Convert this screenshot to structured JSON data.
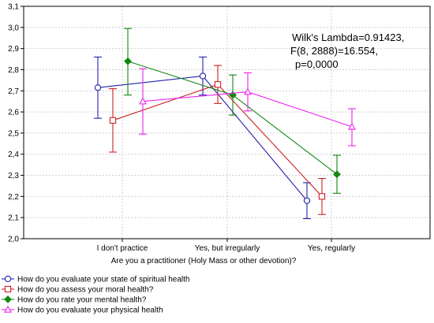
{
  "chart_data": {
    "type": "line",
    "title": "",
    "xlabel": "Are you a practitioner (Holy Mass or other devotion)?",
    "ylabel": "",
    "ylim": [
      2.0,
      3.1
    ],
    "yticks": [
      "2,0",
      "2,1",
      "2,2",
      "2,3",
      "2,4",
      "2,5",
      "2,6",
      "2,7",
      "2,8",
      "2,9",
      "3,0",
      "3,1"
    ],
    "categories": [
      "I don't practice",
      "Yes, but irregularly",
      "Yes, regularly"
    ],
    "grid": true,
    "legend_position": "bottom",
    "annotation": [
      "Wilk's Lambda=0.91423,",
      "F(8, 2888)=16.554,",
      "p=0,0000"
    ],
    "series": [
      {
        "name": "How do you evaluate your state of spiritual health",
        "color": "#2222aa",
        "marker": "circle",
        "values": [
          2.715,
          2.77,
          2.18
        ],
        "lower": [
          2.57,
          2.68,
          2.095
        ],
        "upper": [
          2.86,
          2.86,
          2.265
        ]
      },
      {
        "name": "How do you assess your moral health?",
        "color": "#cc2222",
        "marker": "square",
        "values": [
          2.56,
          2.73,
          2.2
        ],
        "lower": [
          2.41,
          2.64,
          2.115
        ],
        "upper": [
          2.71,
          2.82,
          2.285
        ]
      },
      {
        "name": "How do you rate your mental health?",
        "color": "#118811",
        "marker": "diamond",
        "values": [
          2.84,
          2.68,
          2.305
        ],
        "lower": [
          2.68,
          2.585,
          2.215
        ],
        "upper": [
          2.995,
          2.775,
          2.395
        ]
      },
      {
        "name": "How do you evaluate your physical health",
        "color": "#ee22ee",
        "marker": "triangle",
        "values": [
          2.65,
          2.695,
          2.53
        ],
        "lower": [
          2.495,
          2.605,
          2.44
        ],
        "upper": [
          2.805,
          2.785,
          2.615
        ]
      }
    ]
  }
}
